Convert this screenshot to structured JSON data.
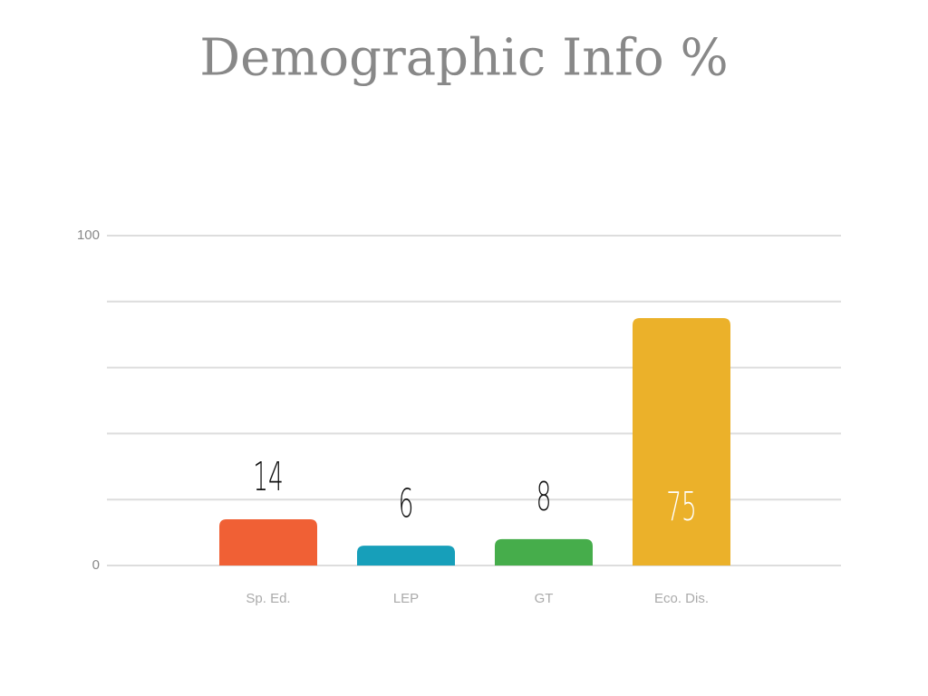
{
  "chart_data": {
    "type": "bar",
    "title": "Demographic Info %",
    "categories": [
      "Sp. Ed.",
      "LEP",
      "GT",
      "Eco. Dis."
    ],
    "values": [
      14,
      6,
      8,
      75
    ],
    "colors": [
      "#f06035",
      "#179fba",
      "#46ad4b",
      "#ebb12a"
    ],
    "ylim": [
      0,
      100
    ],
    "yticks": [
      0,
      {
        "value": 20,
        "label": null
      },
      {
        "value": 40,
        "label": null
      },
      {
        "value": 60,
        "label": null
      },
      {
        "value": 80,
        "label": null
      },
      100
    ],
    "grid": true
  }
}
